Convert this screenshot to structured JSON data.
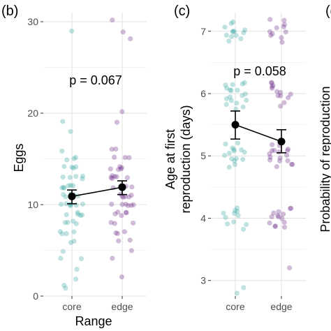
{
  "chart_data": [
    {
      "panel": "(b)",
      "type": "scatter",
      "categories": [
        "core",
        "edge"
      ],
      "xlabel": "Range",
      "ylabel": "Eggs",
      "ylim": [
        0,
        31
      ],
      "yticks": [
        0,
        10,
        20,
        30
      ],
      "annotation": "p = 0.067",
      "point_colors": {
        "core": "#3aa8a6",
        "edge": "#6e2b8a"
      },
      "mean_color": "#000000",
      "means": [
        {
          "x": "core",
          "y": 10.9,
          "lo": 10.1,
          "hi": 11.6
        },
        {
          "x": "edge",
          "y": 11.9,
          "lo": 11.1,
          "hi": 12.6
        }
      ],
      "points": {
        "core": [
          29,
          19,
          18,
          16,
          15,
          15,
          15,
          14,
          14,
          14,
          14,
          13,
          13,
          13,
          13,
          13,
          12,
          12,
          12,
          12,
          12,
          12,
          11,
          11,
          11,
          11,
          11,
          11,
          10,
          10,
          10,
          10,
          10,
          10,
          10,
          9,
          9,
          9,
          9,
          9,
          8,
          8,
          8,
          8,
          7,
          7,
          7,
          7,
          6,
          6,
          5,
          4,
          4,
          3,
          2,
          1,
          1
        ],
        "edge": [
          30,
          29,
          28,
          20,
          19,
          16,
          16,
          15,
          15,
          15,
          14,
          14,
          14,
          14,
          14,
          13,
          13,
          13,
          13,
          13,
          13,
          12,
          12,
          12,
          12,
          12,
          12,
          12,
          11,
          11,
          11,
          11,
          11,
          11,
          10,
          10,
          10,
          10,
          10,
          10,
          9,
          9,
          9,
          9,
          9,
          8,
          8,
          8,
          7,
          7,
          7,
          6,
          6,
          5,
          4,
          2
        ]
      }
    },
    {
      "panel": "(c)",
      "type": "scatter",
      "categories": [
        "core",
        "edge"
      ],
      "ylabel_lines": [
        "Age at first",
        "reproduction (days)"
      ],
      "ylim": [
        2.75,
        7.3
      ],
      "yticks": [
        3,
        4,
        5,
        6,
        7
      ],
      "annotation": "p = 0.058",
      "point_colors": {
        "core": "#3aa8a6",
        "edge": "#6e2b8a"
      },
      "mean_color": "#000000",
      "means": [
        {
          "x": "core",
          "y": 5.5,
          "lo": 5.27,
          "hi": 5.72
        },
        {
          "x": "edge",
          "y": 5.23,
          "lo": 5.05,
          "hi": 5.42
        }
      ],
      "points": {
        "core": [
          7.15,
          7.1,
          7.08,
          7.0,
          7.0,
          6.98,
          6.97,
          6.95,
          6.95,
          6.92,
          6.9,
          6.88,
          6.85,
          6.2,
          6.17,
          6.15,
          6.12,
          6.1,
          6.08,
          6.05,
          6.03,
          6.0,
          5.98,
          5.95,
          5.93,
          5.9,
          5.88,
          5.85,
          5.82,
          5.8,
          5.75,
          5.2,
          5.17,
          5.15,
          5.12,
          5.1,
          5.08,
          5.05,
          5.03,
          5.0,
          4.98,
          4.95,
          4.93,
          4.9,
          4.85,
          4.82,
          4.15,
          4.12,
          4.1,
          4.08,
          4.05,
          4.02,
          4.0,
          3.95,
          3.92,
          3.88,
          3.85,
          2.9,
          2.82
        ],
        "edge": [
          7.18,
          7.15,
          7.1,
          7.08,
          7.05,
          7.0,
          6.98,
          6.95,
          6.92,
          6.9,
          6.85,
          6.17,
          6.15,
          6.12,
          6.1,
          6.08,
          6.05,
          6.02,
          6.0,
          5.98,
          5.95,
          5.92,
          5.85,
          5.82,
          5.18,
          5.15,
          5.12,
          5.1,
          5.08,
          5.06,
          5.05,
          5.03,
          5.0,
          4.98,
          4.97,
          4.95,
          4.93,
          4.9,
          4.88,
          4.85,
          4.82,
          4.17,
          4.15,
          4.12,
          4.1,
          4.07,
          4.05,
          4.02,
          4.0,
          3.98,
          3.95,
          3.92,
          3.9,
          3.88,
          3.85,
          3.18
        ]
      }
    },
    {
      "panel": "(d)",
      "type": "scatter",
      "ylabel": "Probability of reproduction"
    }
  ]
}
